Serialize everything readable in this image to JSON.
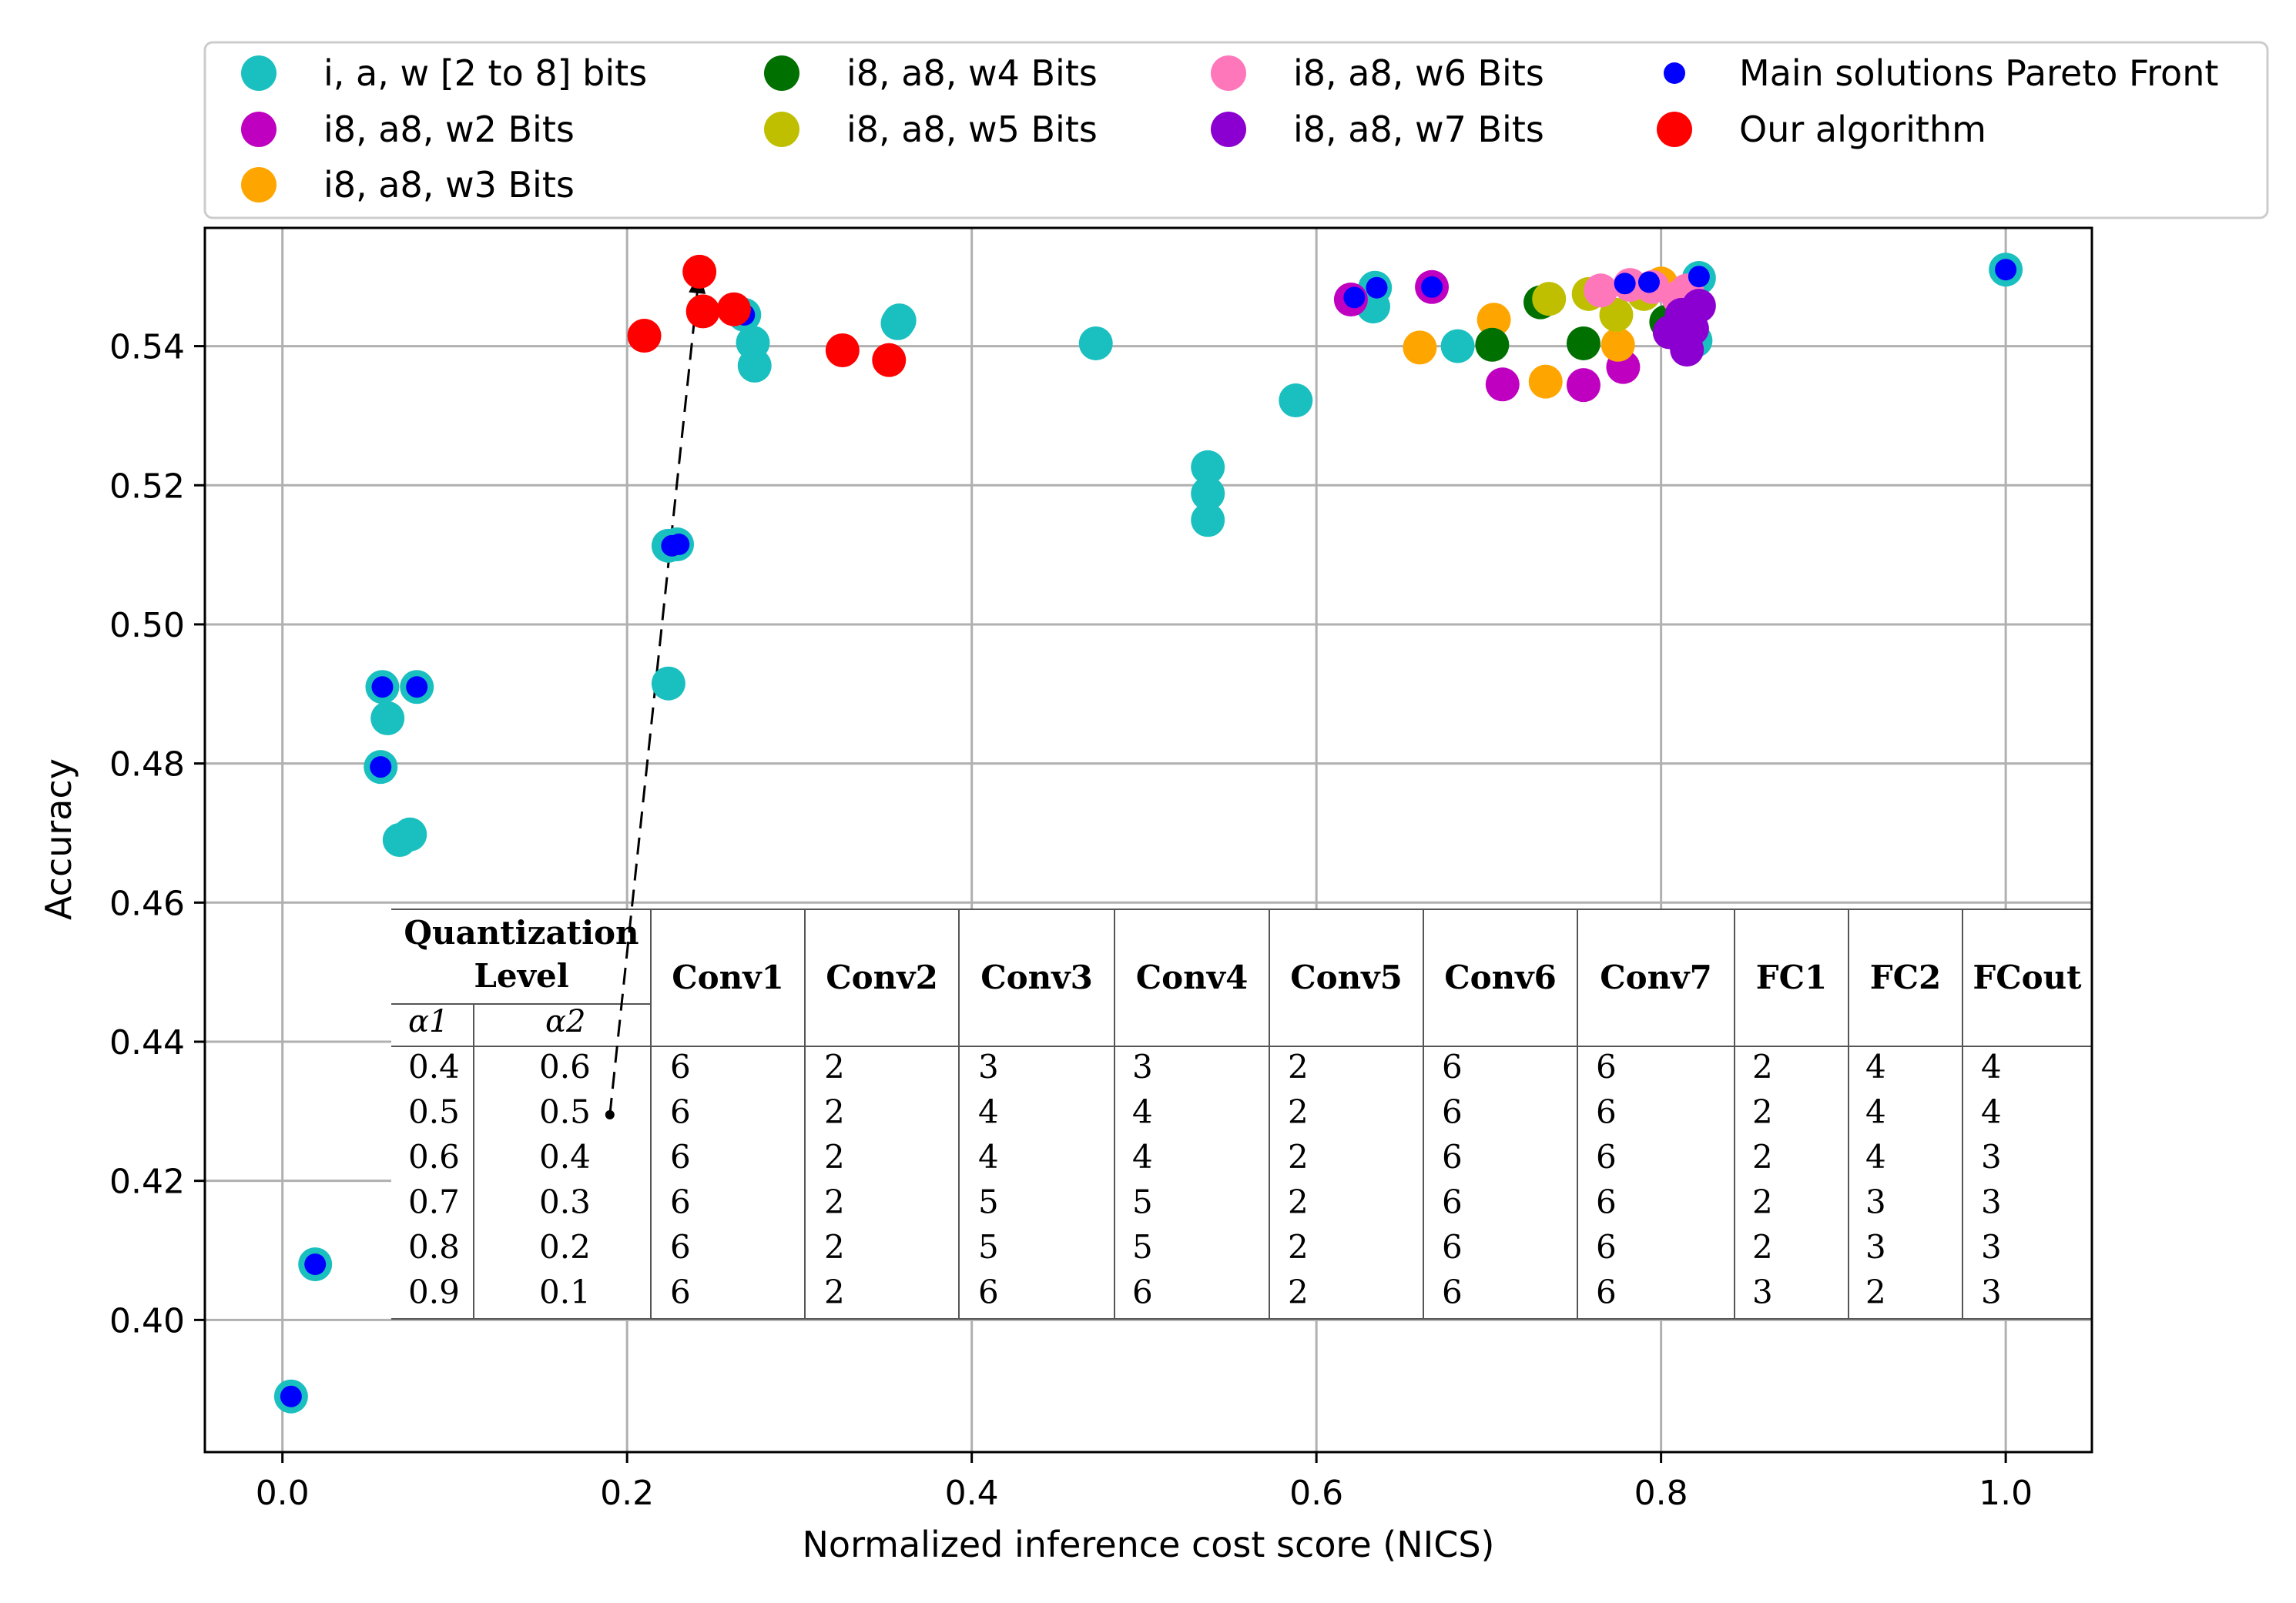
{
  "chart_data": {
    "type": "scatter",
    "title": "",
    "xlabel": "Normalized inference cost score (NICS)",
    "ylabel": "Accuracy",
    "xlim": [
      -0.045,
      1.05
    ],
    "ylim": [
      0.381,
      0.557
    ],
    "xticks": [
      0.0,
      0.2,
      0.4,
      0.6,
      0.8,
      1.0
    ],
    "xtick_labels": [
      "0.0",
      "0.2",
      "0.4",
      "0.6",
      "0.8",
      "1.0"
    ],
    "yticks": [
      0.4,
      0.42,
      0.44,
      0.46,
      0.48,
      0.5,
      0.52,
      0.54
    ],
    "ytick_labels": [
      "0.40",
      "0.42",
      "0.44",
      "0.46",
      "0.48",
      "0.50",
      "0.52",
      "0.54"
    ],
    "grid": true,
    "legend_position": "top, outside plot",
    "series": [
      {
        "name": "i, a, w [2 to 8] bits",
        "color": "#1ABFBF",
        "points": [
          [
            0.005,
            0.389
          ],
          [
            0.019,
            0.408
          ],
          [
            0.057,
            0.4795
          ],
          [
            0.058,
            0.491
          ],
          [
            0.061,
            0.4865
          ],
          [
            0.068,
            0.469
          ],
          [
            0.074,
            0.4698
          ],
          [
            0.078,
            0.491
          ],
          [
            0.224,
            0.5113
          ],
          [
            0.224,
            0.4915
          ],
          [
            0.229,
            0.5115
          ],
          [
            0.268,
            0.5445
          ],
          [
            0.273,
            0.5405
          ],
          [
            0.274,
            0.5372
          ],
          [
            0.357,
            0.5433
          ],
          [
            0.358,
            0.5437
          ],
          [
            0.472,
            0.5404
          ],
          [
            0.537,
            0.5226
          ],
          [
            0.537,
            0.5188
          ],
          [
            0.537,
            0.515
          ],
          [
            0.588,
            0.5322
          ],
          [
            0.633,
            0.5457
          ],
          [
            0.634,
            0.5484
          ],
          [
            0.682,
            0.54
          ],
          [
            0.822,
            0.5498
          ],
          [
            0.82,
            0.5408
          ],
          [
            1.0,
            0.551
          ]
        ]
      },
      {
        "name": "i8, a8, w2 Bits",
        "color": "#C000C0",
        "points": [
          [
            0.62,
            0.5467
          ],
          [
            0.667,
            0.5485
          ],
          [
            0.708,
            0.5345
          ],
          [
            0.755,
            0.5344
          ],
          [
            0.778,
            0.537
          ]
        ]
      },
      {
        "name": "i8, a8, w3 Bits",
        "color": "#FFA500",
        "points": [
          [
            0.66,
            0.5398
          ],
          [
            0.703,
            0.5438
          ],
          [
            0.733,
            0.5349
          ],
          [
            0.775,
            0.5402
          ],
          [
            0.8,
            0.549
          ]
        ]
      },
      {
        "name": "i8, a8, w4 Bits",
        "color": "#007000",
        "points": [
          [
            0.702,
            0.5402
          ],
          [
            0.73,
            0.5463
          ],
          [
            0.755,
            0.5404
          ],
          [
            0.803,
            0.5435
          ]
        ]
      },
      {
        "name": "i8, a8, w5 Bits",
        "color": "#BFBF00",
        "points": [
          [
            0.735,
            0.5468
          ],
          [
            0.758,
            0.5475
          ],
          [
            0.774,
            0.5445
          ],
          [
            0.79,
            0.5475
          ]
        ]
      },
      {
        "name": "i8, a8, w6 Bits",
        "color": "#FF77BB",
        "points": [
          [
            0.765,
            0.548
          ],
          [
            0.782,
            0.5488
          ],
          [
            0.795,
            0.5485
          ],
          [
            0.81,
            0.547
          ],
          [
            0.815,
            0.548
          ]
        ]
      },
      {
        "name": "i8, a8, w7 Bits",
        "color": "#8B00D0",
        "points": [
          [
            0.805,
            0.542
          ],
          [
            0.812,
            0.5445
          ],
          [
            0.815,
            0.5395
          ],
          [
            0.818,
            0.5425
          ],
          [
            0.822,
            0.5458
          ]
        ]
      },
      {
        "name": "Main solutions Pareto Front",
        "color": "#0000FF",
        "small": true,
        "points": [
          [
            0.005,
            0.389
          ],
          [
            0.019,
            0.408
          ],
          [
            0.057,
            0.4795
          ],
          [
            0.058,
            0.491
          ],
          [
            0.078,
            0.491
          ],
          [
            0.226,
            0.5113
          ],
          [
            0.23,
            0.5115
          ],
          [
            0.268,
            0.5445
          ],
          [
            0.622,
            0.547
          ],
          [
            0.635,
            0.5484
          ],
          [
            0.667,
            0.5485
          ],
          [
            0.779,
            0.549
          ],
          [
            0.793,
            0.5492
          ],
          [
            0.822,
            0.55
          ],
          [
            1.0,
            0.551
          ]
        ]
      },
      {
        "name": "Our algorithm",
        "color": "#FF0000",
        "points": [
          [
            0.21,
            0.5415
          ],
          [
            0.242,
            0.5507
          ],
          [
            0.244,
            0.545
          ],
          [
            0.262,
            0.5453
          ],
          [
            0.325,
            0.5394
          ],
          [
            0.352,
            0.538
          ]
        ]
      }
    ],
    "annotation": {
      "type": "arrow",
      "from": [
        0.19,
        0.4295
      ],
      "to": [
        0.242,
        0.5507
      ],
      "style": "dashed"
    },
    "inset_table": {
      "header_group": "Quantization Level",
      "alpha_headers": [
        "α1",
        "α2"
      ],
      "columns": [
        "Conv1",
        "Conv2",
        "Conv3",
        "Conv4",
        "Conv5",
        "Conv6",
        "Conv7",
        "FC1",
        "FC2",
        "FCout"
      ],
      "rows": [
        [
          "0.4",
          "0.6",
          "6",
          "2",
          "3",
          "3",
          "2",
          "6",
          "6",
          "2",
          "4",
          "4"
        ],
        [
          "0.5",
          "0.5",
          "6",
          "2",
          "4",
          "4",
          "2",
          "6",
          "6",
          "2",
          "4",
          "4"
        ],
        [
          "0.6",
          "0.4",
          "6",
          "2",
          "4",
          "4",
          "2",
          "6",
          "6",
          "2",
          "4",
          "3"
        ],
        [
          "0.7",
          "0.3",
          "6",
          "2",
          "5",
          "5",
          "2",
          "6",
          "6",
          "2",
          "3",
          "3"
        ],
        [
          "0.8",
          "0.2",
          "6",
          "2",
          "5",
          "5",
          "2",
          "6",
          "6",
          "2",
          "3",
          "3"
        ],
        [
          "0.9",
          "0.1",
          "6",
          "2",
          "6",
          "6",
          "2",
          "6",
          "6",
          "3",
          "2",
          "3"
        ]
      ]
    }
  }
}
